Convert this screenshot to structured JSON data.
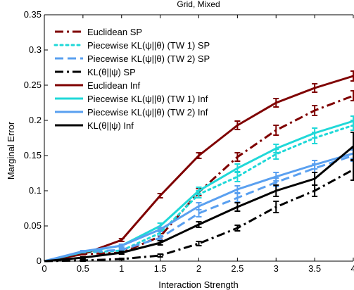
{
  "chart_data": {
    "type": "line",
    "title": "Grid, Mixed",
    "xlabel": "Interaction Strength",
    "ylabel": "Marginal Error",
    "xlim": [
      0,
      4
    ],
    "ylim": [
      0,
      0.35
    ],
    "x_ticks": [
      "0",
      "0.5",
      "1",
      "1.5",
      "2",
      "2.5",
      "3",
      "3.5",
      "4"
    ],
    "y_ticks": [
      "0",
      "0.05",
      "0.1",
      "0.15",
      "0.2",
      "0.25",
      "0.3",
      "0.35"
    ],
    "grid": false,
    "legend_position": "top-left",
    "x": [
      0.5,
      1,
      1.5,
      2,
      2.5,
      3,
      3.5,
      4
    ],
    "series": [
      {
        "name": "Euclidean SP",
        "color": "#7f0000",
        "dash": "dashdot",
        "values": [
          0.01,
          0.012,
          0.035,
          0.098,
          0.148,
          0.186,
          0.214,
          0.235
        ],
        "errors": [
          0.001,
          0.002,
          0.004,
          0.005,
          0.006,
          0.007,
          0.007,
          0.007
        ]
      },
      {
        "name": "Piecewise KL(ψ||θ) (TW 1) SP",
        "color": "#20d8d8",
        "dash": "dotted",
        "values": [
          0.012,
          0.015,
          0.04,
          0.095,
          0.12,
          0.152,
          0.175,
          0.193
        ],
        "errors": [
          0.001,
          0.002,
          0.004,
          0.005,
          0.007,
          0.007,
          0.008,
          0.007
        ]
      },
      {
        "name": "Piecewise KL(ψ||θ) (TW 2) SP",
        "color": "#5aa0f0",
        "dash": "dashed",
        "values": [
          0.013,
          0.016,
          0.033,
          0.068,
          0.09,
          0.112,
          0.132,
          0.15
        ],
        "errors": [
          0.001,
          0.002,
          0.003,
          0.005,
          0.006,
          0.006,
          0.006,
          0.008
        ]
      },
      {
        "name": "KL(θ||ψ) SP",
        "color": "#000000",
        "dash": "dashdot",
        "values": [
          0.001,
          0.003,
          0.008,
          0.025,
          0.047,
          0.077,
          0.1,
          0.13
        ],
        "errors": [
          0.001,
          0.001,
          0.002,
          0.003,
          0.004,
          0.008,
          0.008,
          0.015
        ]
      },
      {
        "name": "Euclidean Inf",
        "color": "#7f0000",
        "dash": "solid",
        "values": [
          0.01,
          0.03,
          0.093,
          0.15,
          0.193,
          0.225,
          0.246,
          0.263
        ],
        "errors": [
          0.001,
          0.002,
          0.003,
          0.004,
          0.006,
          0.006,
          0.006,
          0.007
        ]
      },
      {
        "name": "Piecewise KL(ψ||θ) (TW 1) Inf",
        "color": "#20d8d8",
        "dash": "solid",
        "values": [
          0.013,
          0.022,
          0.05,
          0.1,
          0.132,
          0.16,
          0.182,
          0.199
        ],
        "errors": [
          0.001,
          0.002,
          0.004,
          0.005,
          0.006,
          0.006,
          0.007,
          0.007
        ]
      },
      {
        "name": "Piecewise KL(ψ||θ) (TW 2) Inf",
        "color": "#5aa0f0",
        "dash": "solid",
        "values": [
          0.014,
          0.022,
          0.045,
          0.078,
          0.102,
          0.12,
          0.137,
          0.153
        ],
        "errors": [
          0.001,
          0.002,
          0.003,
          0.005,
          0.005,
          0.006,
          0.006,
          0.007
        ]
      },
      {
        "name": "KL(θ||ψ) Inf",
        "color": "#000000",
        "dash": "solid",
        "values": [
          0.005,
          0.012,
          0.026,
          0.052,
          0.077,
          0.1,
          0.117,
          0.163
        ],
        "errors": [
          0.001,
          0.002,
          0.003,
          0.004,
          0.006,
          0.008,
          0.009,
          0.02
        ]
      }
    ]
  }
}
